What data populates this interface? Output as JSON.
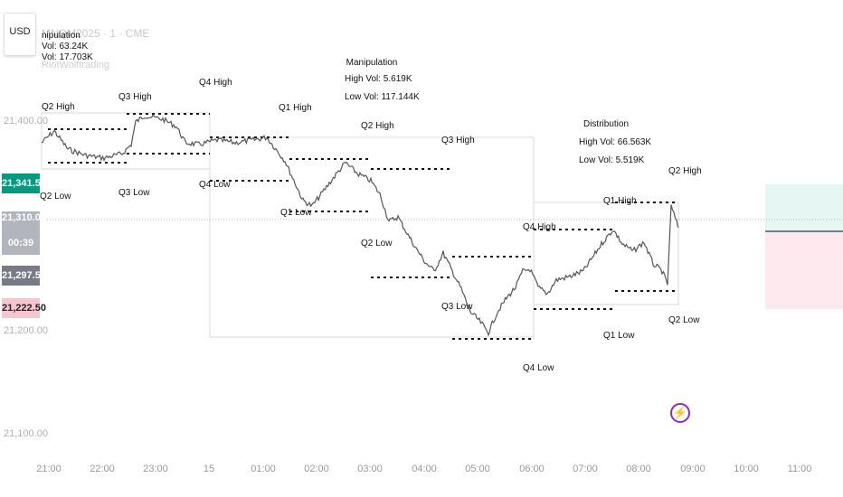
{
  "toolbar": {
    "currency": "USD"
  },
  "symbol": {
    "title": "MNQM2025 · 1 · CME",
    "watermark": "RiotWolftrading"
  },
  "price_axis": {
    "labels": [
      "21,400.00",
      "21,200.00",
      "21,100.00"
    ]
  },
  "time_axis": {
    "labels": [
      "21:00",
      "22:00",
      "23:00",
      "15",
      "01:00",
      "02:00",
      "03:00",
      "04:00",
      "05:00",
      "06:00",
      "07:00",
      "08:00",
      "09:00",
      "10:00",
      "11:00"
    ]
  },
  "price_tags": [
    {
      "value": "21,341.50",
      "color": "#089981"
    },
    {
      "value": "21,310.00",
      "color": "#b2b5be"
    },
    {
      "value": "00:39",
      "color": "#b2b5be"
    },
    {
      "value": "21,297.50",
      "color": "#787b86"
    },
    {
      "value": "21,222.50",
      "color": "#f7c5cf"
    }
  ],
  "annotations": {
    "top_left": {
      "line1": "nipulation",
      "line2": "Vol: 63.24K",
      "line3": "Vol: 17.703K"
    },
    "manipulation": {
      "line1": "Manipulation",
      "line2": "High Vol: 5.619K",
      "line3": "Low Vol: 117.144K"
    },
    "distribution": {
      "line1": "Distribution",
      "line2": "High Vol: 66.563K",
      "line3": "Low Vol: 5.519K"
    }
  },
  "labels": {
    "q2_high_left": "Q2 High",
    "q2_low_left": "Q2 Low",
    "q3_high_a": "Q3 High",
    "q3_low_a": "Q3 Low",
    "q4_high_a": "Q4 High",
    "q4_low_a": "Q4 Low",
    "q1_high_a": "Q1 High",
    "q1_low_a": "Q1 Low",
    "q2_high_b": "Q2 High",
    "q2_low_b": "Q2 Low",
    "q3_high_b": "Q3 High",
    "q3_low_b": "Q3 Low",
    "q4_high_b": "Q4 High",
    "q4_low_b": "Q4 Low",
    "q1_high_b": "Q1 High",
    "q1_low_b": "Q1 Low",
    "q2_high_c": "Q2 High",
    "q2_low_c": "Q2 Low"
  },
  "colors": {
    "line": "#333333",
    "up_zone": "#e6f6f3",
    "down_zone": "#fde9ee",
    "accent_purple": "#8a2ac9"
  },
  "icons": {
    "alert": "lightning-icon"
  }
}
